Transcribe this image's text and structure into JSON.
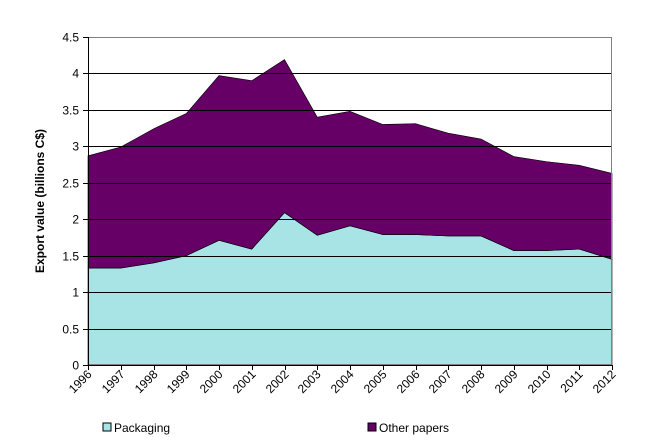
{
  "chart_data": {
    "type": "area",
    "stacked": true,
    "title": "",
    "xlabel": "",
    "ylabel": "Export value (billions C$)",
    "ylim": [
      0,
      4.5
    ],
    "yticks": [
      "0",
      "0.5",
      "1",
      "1.5",
      "2",
      "2.5",
      "3",
      "3.5",
      "4",
      "4.5"
    ],
    "grid": "horizontal",
    "legend_position": "bottom",
    "categories": [
      "1996",
      "1997",
      "1998",
      "1999",
      "2000",
      "2001",
      "2002",
      "2003",
      "2004",
      "2005",
      "2006",
      "2007",
      "2008",
      "2009",
      "2010",
      "2011",
      "2012"
    ],
    "series": [
      {
        "name": "Packaging",
        "color": "#a8e3e6",
        "values": [
          1.33,
          1.33,
          1.4,
          1.5,
          1.71,
          1.59,
          2.09,
          1.78,
          1.91,
          1.79,
          1.79,
          1.77,
          1.77,
          1.57,
          1.57,
          1.59,
          1.45
        ]
      },
      {
        "name": "Other papers",
        "color": "#660066",
        "values": [
          1.54,
          1.66,
          1.84,
          1.95,
          2.26,
          2.31,
          2.1,
          1.62,
          1.57,
          1.51,
          1.52,
          1.41,
          1.33,
          1.29,
          1.22,
          1.15,
          1.18
        ]
      }
    ]
  }
}
